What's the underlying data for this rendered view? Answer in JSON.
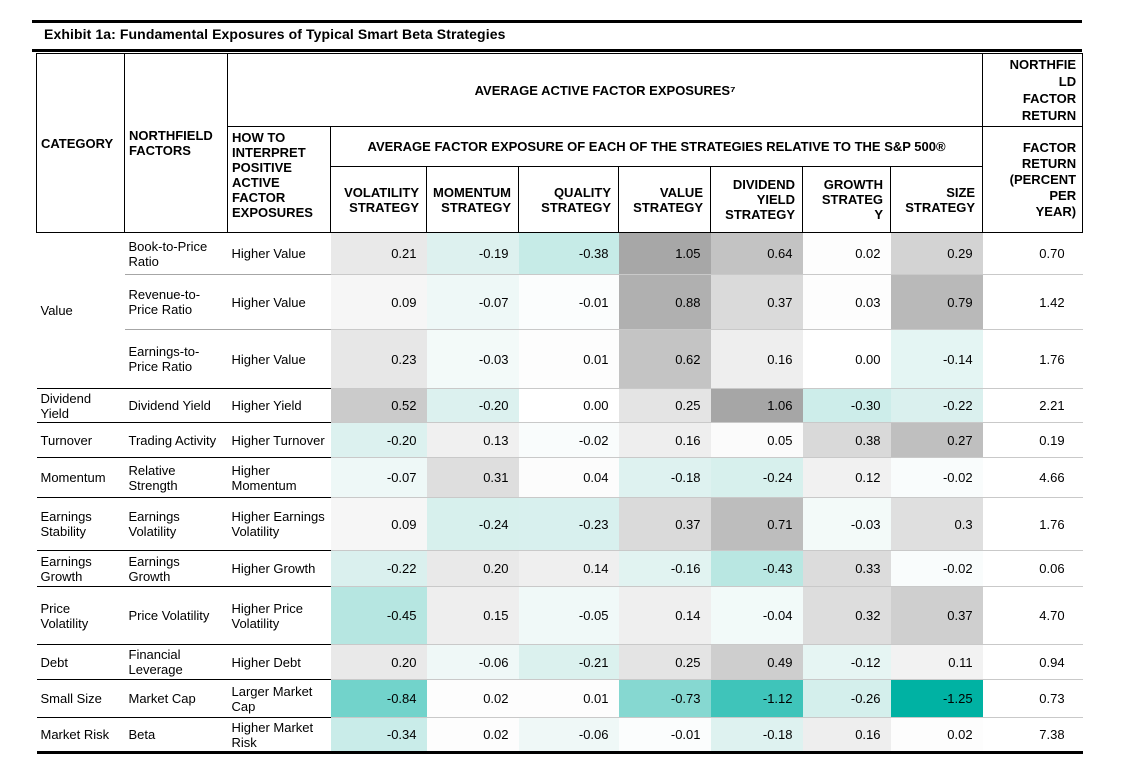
{
  "title": "Exhibit 1a: Fundamental Exposures of Typical Smart Beta Strategies",
  "accent_colors": {
    "heatmap_negative_max": "#00b2a3",
    "heatmap_positive_max": "#a6a6a6",
    "category_border": "#000000",
    "subrow_border": "#a6a6a6",
    "grid_border": "#c9c9c9"
  },
  "table": {
    "col_headers": {
      "category": "CATEGORY",
      "factors": "NORTHFIELD FACTORS",
      "interpret": "HOW TO INTERPRET POSITIVE ACTIVE FACTOR EXPOSURES",
      "avg_exposures": "AVERAGE ACTIVE FACTOR EXPOSURES⁷",
      "relative": "AVERAGE FACTOR EXPOSURE OF EACH OF THE STRATEGIES RELATIVE TO THE S&P 500®",
      "northfield_return": "NORTHFIE\nLD\nFACTOR\nRETURN",
      "factor_return": "FACTOR\nRETURN\n(PERCENT\nPER\nYEAR)",
      "strategies": [
        "VOLATILITY STRATEGY",
        "MOMENTUM STRATEGY",
        "QUALITY STRATEGY",
        "VALUE STRATEGY",
        "DIVIDEND YIELD STRATEGY",
        "GROWTH\nSTRATEG\nY",
        "SIZE STRATEGY"
      ]
    },
    "rows": [
      {
        "category": "Value",
        "category_span": 3,
        "group_start": true,
        "factor": "Book-to-Price Ratio",
        "interpret": "Higher Value",
        "values": [
          "0.21",
          "-0.19",
          "-0.38",
          "1.05",
          "0.64",
          "0.02",
          "0.29"
        ],
        "colors": [
          "#e9e9e9",
          "#ddf1ef",
          "#c6ebe7",
          "#a7a7a7",
          "#c3c3c3",
          "#fdfdfd",
          "#d3d3d3"
        ],
        "return": "0.70"
      },
      {
        "group_start": false,
        "factor": "Revenue-to-Price Ratio",
        "interpret": "Higher Value",
        "values": [
          "0.09",
          "-0.07",
          "-0.01",
          "0.88",
          "0.37",
          "0.03",
          "0.79"
        ],
        "colors": [
          "#f6f6f6",
          "#eef8f7",
          "#fbfdfd",
          "#b0b0b0",
          "#dadada",
          "#fdfdfd",
          "#b9b9b9"
        ],
        "return": "1.42"
      },
      {
        "group_start": false,
        "factor": "Earnings-to-Price Ratio",
        "interpret": "Higher Value",
        "values": [
          "0.23",
          "-0.03",
          "0.01",
          "0.62",
          "0.16",
          "0.00",
          "-0.14"
        ],
        "colors": [
          "#e7e7e7",
          "#f3faf9",
          "#fdfdfd",
          "#c4c4c4",
          "#eeeeee",
          "#ffffff",
          "#e4f5f3"
        ],
        "return": "1.76"
      },
      {
        "category": "Dividend Yield",
        "category_span": 1,
        "group_start": true,
        "factor": "Dividend Yield",
        "interpret": "Higher Yield",
        "values": [
          "0.52",
          "-0.20",
          "0.00",
          "0.25",
          "1.06",
          "-0.30",
          "-0.22"
        ],
        "colors": [
          "#cbcbcb",
          "#dcf1ef",
          "#ffffff",
          "#e4e4e4",
          "#a6a6a6",
          "#cdedea",
          "#daf0ee"
        ],
        "return": "2.21"
      },
      {
        "category": "Turnover",
        "category_span": 1,
        "group_start": true,
        "factor": "Trading Activity",
        "interpret": "Higher Turnover",
        "values": [
          "-0.20",
          "0.13",
          "-0.02",
          "0.16",
          "0.05",
          "0.38",
          "0.27"
        ],
        "colors": [
          "#dcf1ef",
          "#f0f0f0",
          "#f9fcfc",
          "#eeeeee",
          "#fbfbfb",
          "#d9d9d9",
          "#bfbfbf"
        ],
        "return": "0.19"
      },
      {
        "category": "Momentum",
        "category_span": 1,
        "group_start": true,
        "factor": "Relative Strength",
        "interpret": "Higher Momentum",
        "values": [
          "-0.07",
          "0.31",
          "0.04",
          "-0.18",
          "-0.24",
          "0.12",
          "-0.02"
        ],
        "colors": [
          "#eef8f7",
          "#dedede",
          "#fcfcfc",
          "#def2f0",
          "#d7f0ed",
          "#f1f1f1",
          "#f9fcfc"
        ],
        "return": "4.66"
      },
      {
        "category": "Earnings Stability",
        "category_span": 1,
        "group_start": true,
        "factor": "Earnings Volatility",
        "interpret": "Higher Earnings Volatility",
        "values": [
          "0.09",
          "-0.24",
          "-0.23",
          "0.37",
          "0.71",
          "-0.03",
          "0.3"
        ],
        "colors": [
          "#f6f6f6",
          "#d7f0ed",
          "#d8f0ee",
          "#dadada",
          "#bdbdbd",
          "#f3faf9",
          "#dfdfdf"
        ],
        "return": "1.76"
      },
      {
        "category": "Earnings Growth",
        "category_span": 1,
        "group_start": true,
        "factor": "Earnings Growth",
        "interpret": "Higher Growth",
        "values": [
          "-0.22",
          "0.20",
          "0.14",
          "-0.16",
          "-0.43",
          "0.33",
          "-0.02"
        ],
        "colors": [
          "#daf0ee",
          "#e9e9e9",
          "#efefef",
          "#e1f3f1",
          "#b9e7e2",
          "#dcdcdc",
          "#f9fcfc"
        ],
        "return": "0.06"
      },
      {
        "category": "Price Volatility",
        "category_span": 1,
        "group_start": true,
        "factor": "Price Volatility",
        "interpret": "Higher Price Volatility",
        "values": [
          "-0.45",
          "0.15",
          "-0.05",
          "0.14",
          "-0.04",
          "0.32",
          "0.37"
        ],
        "colors": [
          "#b6e6e1",
          "#eeeeee",
          "#f0f9f8",
          "#efefef",
          "#f2faf9",
          "#dddddd",
          "#cfcfcf"
        ],
        "return": "4.70"
      },
      {
        "category": "Debt",
        "category_span": 1,
        "group_start": true,
        "factor": "Financial Leverage",
        "interpret": "Higher Debt",
        "values": [
          "0.20",
          "-0.06",
          "-0.21",
          "0.25",
          "0.49",
          "-0.12",
          "0.11"
        ],
        "colors": [
          "#e9e9e9",
          "#eff8f7",
          "#dbf1ee",
          "#e4e4e4",
          "#cecece",
          "#e6f5f3",
          "#f2f2f2"
        ],
        "return": "0.94"
      },
      {
        "category": "Small Size",
        "category_span": 1,
        "group_start": true,
        "factor": "Market Cap",
        "interpret": "Larger Market Cap",
        "values": [
          "-0.84",
          "0.02",
          "0.01",
          "-0.73",
          "-1.12",
          "-0.26",
          "-1.25"
        ],
        "colors": [
          "#72d3cb",
          "#fdfdfd",
          "#fdfdfd",
          "#86d8d1",
          "#3fc4ba",
          "#d4efec",
          "#00b2a3"
        ],
        "return": "0.73"
      },
      {
        "category": "Market Risk",
        "category_span": 1,
        "group_start": true,
        "factor": "Beta",
        "interpret": "Higher Market Risk",
        "values": [
          "-0.34",
          "0.02",
          "-0.06",
          "-0.01",
          "-0.18",
          "0.16",
          "0.02"
        ],
        "colors": [
          "#c9ece9",
          "#fdfdfd",
          "#eff8f7",
          "#fbfdfd",
          "#def2f0",
          "#eeeeee",
          "#fdfdfd"
        ],
        "return": "7.38"
      }
    ]
  }
}
